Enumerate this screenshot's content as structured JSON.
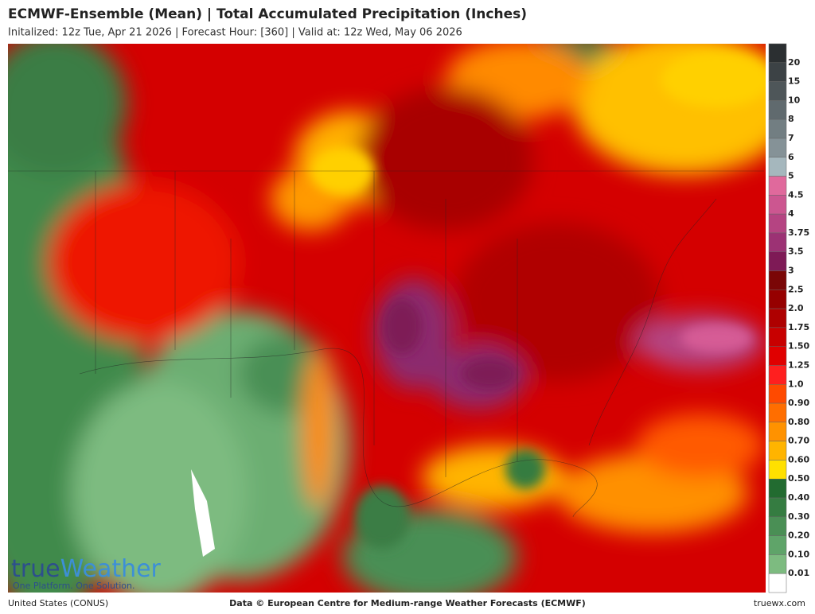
{
  "header": {
    "title": "ECMWF-Ensemble (Mean)  |  Total Accumulated Precipitation (Inches)",
    "subtitle": "Initalized: 12z Tue, Apr 21 2026  |  Forecast Hour: [360]  |  Valid at: 12z Wed, May 06 2026"
  },
  "legend": {
    "labels": [
      "20",
      "15",
      "10",
      "8",
      "7",
      "6",
      "5",
      "4.5",
      "4",
      "3.75",
      "3.5",
      "3",
      "2.5",
      "2.0",
      "1.75",
      "1.50",
      "1.25",
      "1.0",
      "0.90",
      "0.80",
      "0.70",
      "0.60",
      "0.50",
      "0.40",
      "0.30",
      "0.20",
      "0.10",
      "0.01"
    ],
    "colors": [
      "#2b2f31",
      "#3c4245",
      "#4e5659",
      "#606a6e",
      "#727e82",
      "#859297",
      "#a5b7bd",
      "#e0699c",
      "#cc5690",
      "#b54482",
      "#9c3274",
      "#7e1a56",
      "#7a0606",
      "#960000",
      "#ae0000",
      "#c80000",
      "#e00000",
      "#ff1f1f",
      "#ff4a00",
      "#ff6e00",
      "#ff9200",
      "#ffb400",
      "#ffe000",
      "#226b30",
      "#357c41",
      "#4a8f55",
      "#5fa469",
      "#7dbb80",
      "#ffffff"
    ]
  },
  "logo": {
    "brand_1": "true",
    "brand_2": "Weather",
    "tagline": "One Platform. One Solution."
  },
  "footer": {
    "left": "United States (CONUS)",
    "center": "Data © European Centre for Medium-range Weather Forecasts (ECMWF)",
    "right": "truewx.com"
  }
}
